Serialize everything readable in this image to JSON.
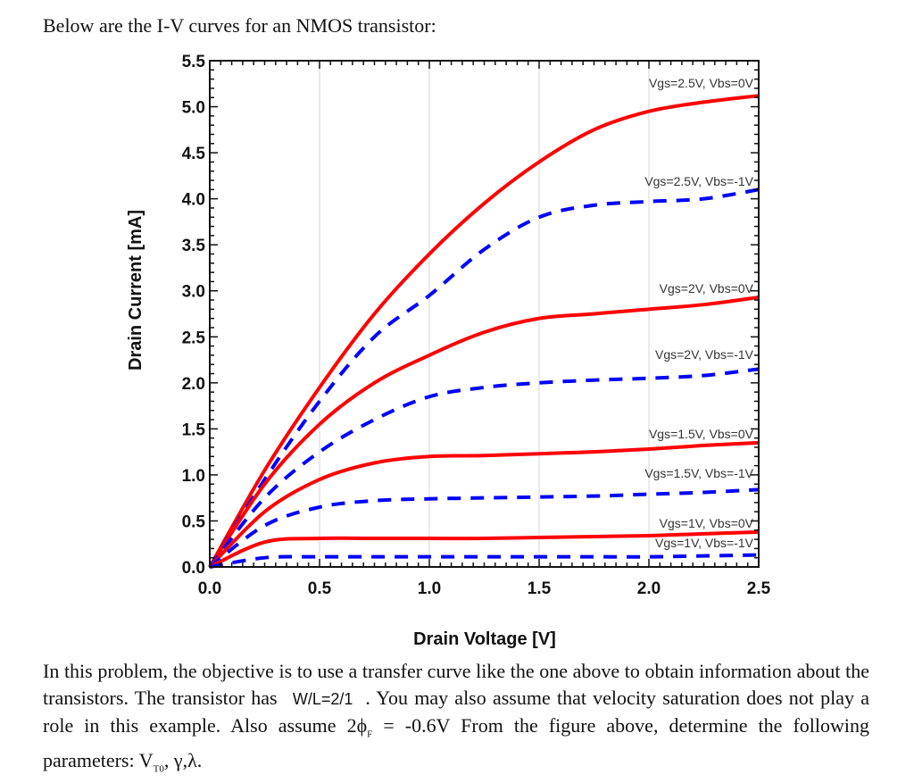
{
  "intro_text": "Below are the I-V curves for an NMOS transistor:",
  "chart_data": {
    "type": "line",
    "xlabel": "Drain Voltage [V]",
    "ylabel": "Drain Current [mA]",
    "xlim": [
      0,
      2.5
    ],
    "ylim": [
      0,
      5.5
    ],
    "xticks": [
      "0.0",
      "0.5",
      "1.0",
      "1.5",
      "2.0",
      "2.5"
    ],
    "yticks": [
      "0.0",
      "0.5",
      "1.0",
      "1.5",
      "2.0",
      "2.5",
      "3.0",
      "3.5",
      "4.0",
      "4.5",
      "5.0",
      "5.5"
    ],
    "grid": true,
    "colors": {
      "solid": "#ff0000",
      "dashed": "#0000ff"
    },
    "series": [
      {
        "name": "Vgs=2.5V, Vbs=0V",
        "style": "solid",
        "x": [
          0,
          0.25,
          0.5,
          0.75,
          1.0,
          1.25,
          1.5,
          1.75,
          2.0,
          2.25,
          2.5
        ],
        "y": [
          0,
          1.05,
          1.95,
          2.75,
          3.4,
          3.95,
          4.4,
          4.75,
          4.95,
          5.05,
          5.12
        ]
      },
      {
        "name": "Vgs=2.5V, Vbs=-1V",
        "style": "dashed",
        "x": [
          0,
          0.25,
          0.5,
          0.75,
          1.0,
          1.25,
          1.5,
          1.75,
          2.0,
          2.25,
          2.5
        ],
        "y": [
          0,
          0.95,
          1.8,
          2.5,
          2.95,
          3.45,
          3.8,
          3.93,
          3.97,
          4.0,
          4.1
        ]
      },
      {
        "name": "Vgs=2V, Vbs=0V",
        "style": "solid",
        "x": [
          0,
          0.25,
          0.5,
          0.75,
          1.0,
          1.25,
          1.5,
          1.75,
          2.0,
          2.25,
          2.5
        ],
        "y": [
          0,
          0.9,
          1.55,
          2.0,
          2.3,
          2.55,
          2.7,
          2.75,
          2.8,
          2.85,
          2.93
        ]
      },
      {
        "name": "Vgs=2V, Vbs=-1V",
        "style": "dashed",
        "x": [
          0,
          0.25,
          0.5,
          0.75,
          1.0,
          1.25,
          1.5,
          1.75,
          2.0,
          2.25,
          2.5
        ],
        "y": [
          0,
          0.75,
          1.25,
          1.6,
          1.85,
          1.95,
          2.0,
          2.03,
          2.05,
          2.08,
          2.15
        ]
      },
      {
        "name": "Vgs=1.5V, Vbs=0V",
        "style": "solid",
        "x": [
          0,
          0.25,
          0.5,
          0.75,
          1.0,
          1.25,
          1.5,
          1.75,
          2.0,
          2.25,
          2.5
        ],
        "y": [
          0,
          0.6,
          0.95,
          1.13,
          1.2,
          1.21,
          1.23,
          1.25,
          1.28,
          1.32,
          1.35
        ]
      },
      {
        "name": "Vgs=1.5V, Vbs=-1V",
        "style": "dashed",
        "x": [
          0,
          0.25,
          0.5,
          0.75,
          1.0,
          1.25,
          1.5,
          1.75,
          2.0,
          2.25,
          2.5
        ],
        "y": [
          0,
          0.45,
          0.65,
          0.72,
          0.74,
          0.75,
          0.76,
          0.77,
          0.79,
          0.81,
          0.84
        ]
      },
      {
        "name": "Vgs=1V, Vbs=0V",
        "style": "solid",
        "x": [
          0,
          0.25,
          0.5,
          0.75,
          1.0,
          1.25,
          1.5,
          1.75,
          2.0,
          2.25,
          2.5
        ],
        "y": [
          0,
          0.27,
          0.31,
          0.31,
          0.31,
          0.31,
          0.32,
          0.33,
          0.34,
          0.36,
          0.38
        ]
      },
      {
        "name": "Vgs=1V, Vbs=-1V",
        "style": "dashed",
        "x": [
          0,
          0.25,
          0.5,
          0.75,
          1.0,
          1.25,
          1.5,
          1.75,
          2.0,
          2.25,
          2.5
        ],
        "y": [
          0,
          0.1,
          0.11,
          0.11,
          0.11,
          0.11,
          0.11,
          0.11,
          0.11,
          0.12,
          0.13
        ]
      }
    ]
  },
  "paragraph": {
    "part1": "In this problem, the objective is to use a transfer curve like the one above to obtain information about the transistors. The transistor has ",
    "wl": "W/L=2/1",
    "part2": ". You may also assume that velocity saturation does not play a role in this example. Also assume 2ϕ",
    "phi_sub": "F",
    "part3": " = -0.6V From the figure above, determine the following parameters: V",
    "vt_sub": "T0",
    "part4": ", γ,λ."
  }
}
